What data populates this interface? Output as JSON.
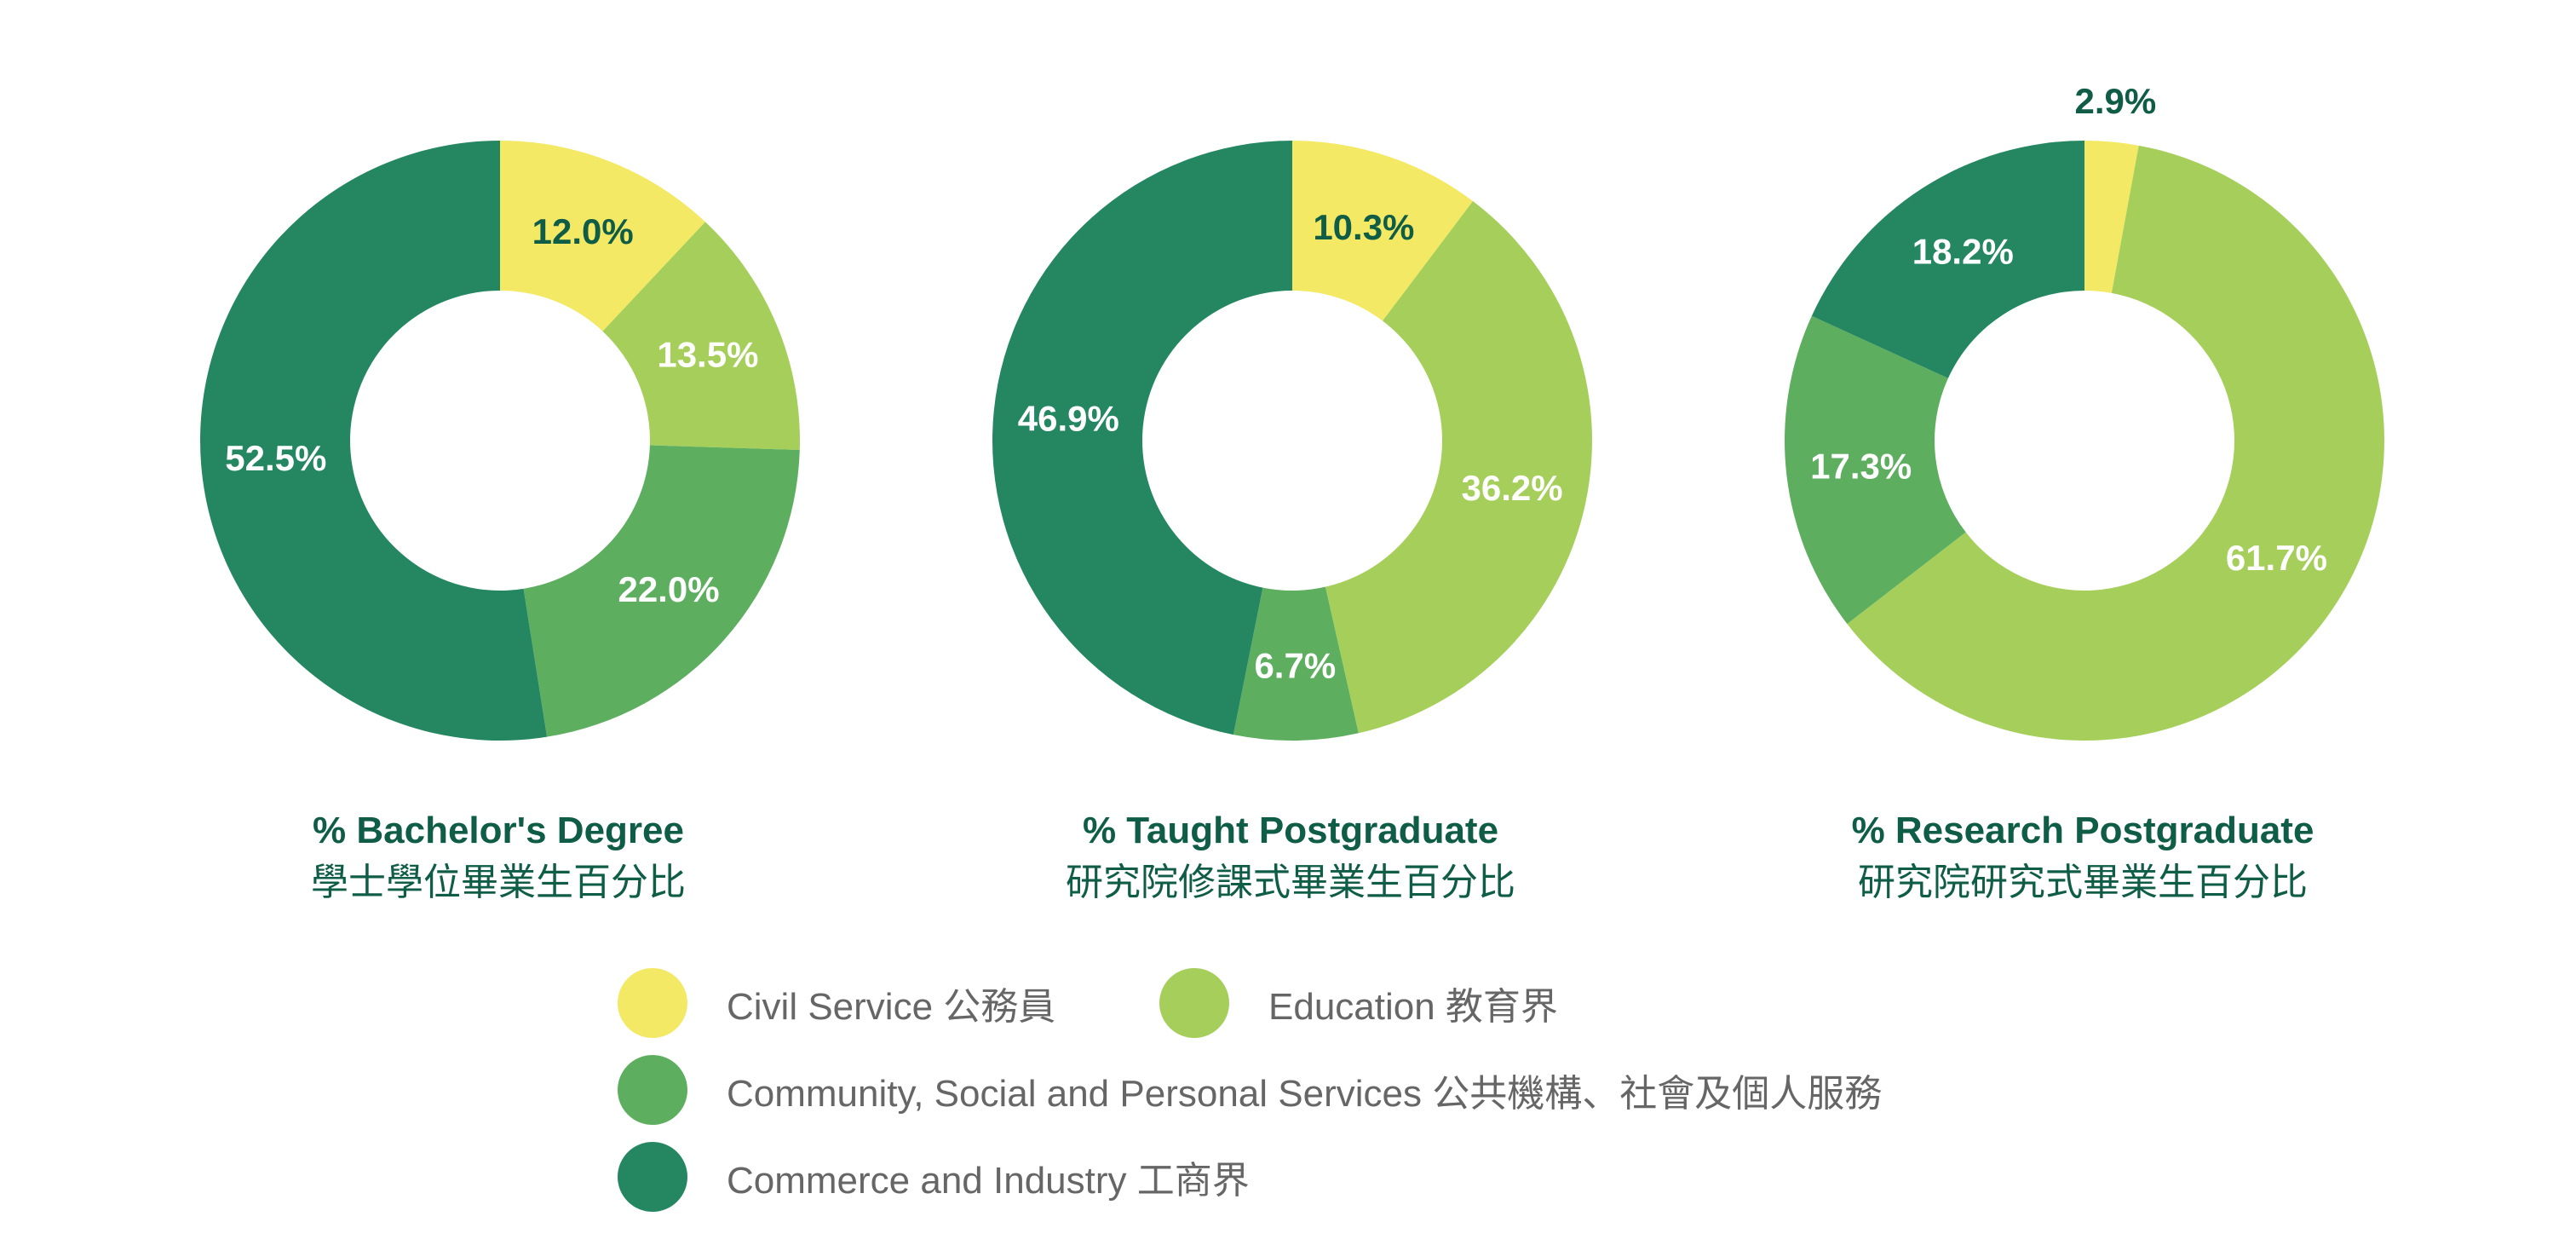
{
  "colors": {
    "civil_service": "#f3e964",
    "education": "#a5cf5a",
    "community": "#5eae60",
    "commerce": "#248762",
    "title_text": "#0f5c47",
    "legend_text": "#666666"
  },
  "legend": [
    {
      "key": "civil_service",
      "label": "Civil Service 公務員"
    },
    {
      "key": "education",
      "label": "Education 教育界"
    },
    {
      "key": "community",
      "label": "Community, Social and Personal Services 公共機構、社會及個人服務"
    },
    {
      "key": "commerce",
      "label": "Commerce and Industry 工商界"
    }
  ],
  "chart_data": [
    {
      "type": "pie",
      "title": "% Bachelor's Degree",
      "subtitle": "學士學位畢業生百分比",
      "categories": [
        "Civil Service",
        "Education",
        "Community, Social and Personal Services",
        "Commerce and Industry"
      ],
      "values": [
        12.0,
        13.5,
        22.0,
        52.5
      ],
      "labels": [
        "12.0%",
        "13.5%",
        "22.0%",
        "52.5%"
      ],
      "donut": true
    },
    {
      "type": "pie",
      "title": "% Taught Postgraduate",
      "subtitle": "研究院修課式畢業生百分比",
      "categories": [
        "Civil Service",
        "Education",
        "Community, Social and Personal Services",
        "Commerce and Industry"
      ],
      "values": [
        10.3,
        36.2,
        6.7,
        46.9
      ],
      "labels": [
        "10.3%",
        "36.2%",
        "6.7%",
        "46.9%"
      ],
      "donut": true
    },
    {
      "type": "pie",
      "title": "% Research Postgraduate",
      "subtitle": "研究院研究式畢業生百分比",
      "categories": [
        "Civil Service",
        "Education",
        "Community, Social and Personal Services",
        "Commerce and Industry"
      ],
      "values": [
        2.9,
        61.7,
        17.3,
        18.2
      ],
      "labels": [
        "2.9%",
        "61.7%",
        "17.3%",
        "18.2%"
      ],
      "donut": true
    }
  ]
}
